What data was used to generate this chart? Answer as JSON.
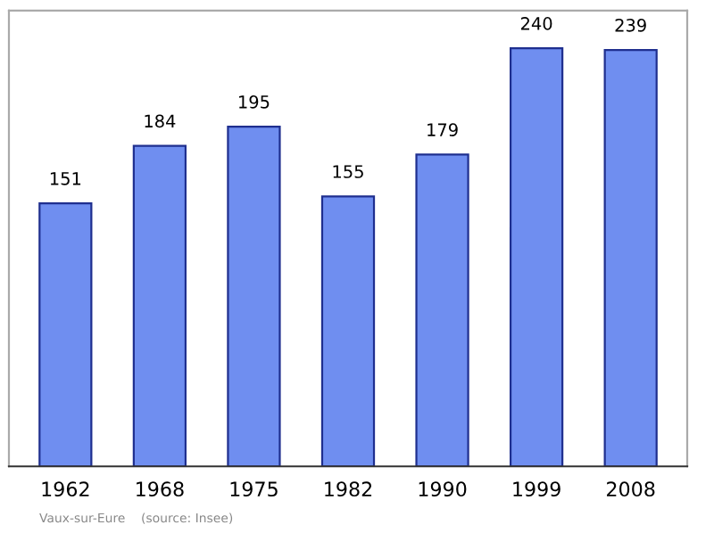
{
  "chart_data": {
    "type": "bar",
    "categories": [
      "1962",
      "1968",
      "1975",
      "1982",
      "1990",
      "1999",
      "2008"
    ],
    "values": [
      151,
      184,
      195,
      155,
      179,
      240,
      239
    ],
    "color": "#6f8ef0",
    "data_labels": true,
    "grid": false,
    "annotations": [
      "Vaux-sur-Eure    (source: Insee)"
    ]
  }
}
